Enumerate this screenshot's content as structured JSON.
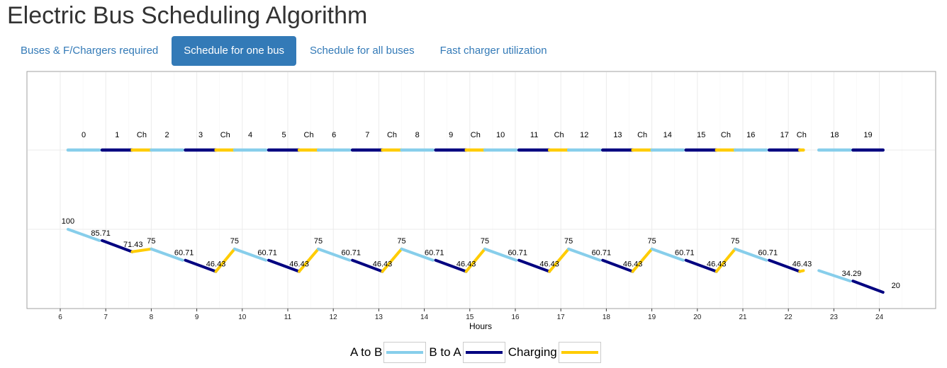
{
  "title": "Electric Bus Scheduling Algorithm",
  "tabs": [
    {
      "label": "Buses & F/Chargers required",
      "active": false
    },
    {
      "label": "Schedule for one bus",
      "active": true
    },
    {
      "label": "Schedule for all buses",
      "active": false
    },
    {
      "label": "Fast charger utilization",
      "active": false
    }
  ],
  "colors": {
    "a_to_b": "#87ceeb",
    "b_to_a": "#000080",
    "charging": "#ffcc00",
    "accent": "#337ab7"
  },
  "legend": [
    {
      "label": "A to B",
      "color_key": "a_to_b"
    },
    {
      "label": "B to A",
      "color_key": "b_to_a"
    },
    {
      "label": "Charging",
      "color_key": "charging"
    }
  ],
  "chart_data": {
    "type": "line",
    "xlabel": "Hours",
    "ylabel": "",
    "xlim": [
      5.6,
      25.5
    ],
    "x_ticks": [
      6,
      7,
      8,
      9,
      10,
      11,
      12,
      13,
      14,
      15,
      16,
      17,
      18,
      19,
      20,
      21,
      22,
      23,
      24
    ],
    "grid": true,
    "legend_position": "bottom",
    "schedule": [
      {
        "label": "0",
        "type": "a_to_b",
        "start": 6.17,
        "end": 6.86
      },
      {
        "label": "1",
        "type": "b_to_a",
        "start": 6.92,
        "end": 7.58
      },
      {
        "label": "Ch",
        "type": "charging",
        "start": 7.58,
        "end": 8.0
      },
      {
        "label": "2",
        "type": "a_to_b",
        "start": 8.0,
        "end": 8.69
      },
      {
        "label": "3",
        "type": "b_to_a",
        "start": 8.75,
        "end": 9.42
      },
      {
        "label": "Ch",
        "type": "charging",
        "start": 9.42,
        "end": 9.83
      },
      {
        "label": "4",
        "type": "a_to_b",
        "start": 9.83,
        "end": 10.52
      },
      {
        "label": "5",
        "type": "b_to_a",
        "start": 10.58,
        "end": 11.25
      },
      {
        "label": "Ch",
        "type": "charging",
        "start": 11.25,
        "end": 11.67
      },
      {
        "label": "6",
        "type": "a_to_b",
        "start": 11.67,
        "end": 12.36
      },
      {
        "label": "7",
        "type": "b_to_a",
        "start": 12.42,
        "end": 13.08
      },
      {
        "label": "Ch",
        "type": "charging",
        "start": 13.08,
        "end": 13.5
      },
      {
        "label": "8",
        "type": "a_to_b",
        "start": 13.5,
        "end": 14.19
      },
      {
        "label": "9",
        "type": "b_to_a",
        "start": 14.25,
        "end": 14.92
      },
      {
        "label": "Ch",
        "type": "charging",
        "start": 14.92,
        "end": 15.33
      },
      {
        "label": "10",
        "type": "a_to_b",
        "start": 15.33,
        "end": 16.02
      },
      {
        "label": "11",
        "type": "b_to_a",
        "start": 16.08,
        "end": 16.75
      },
      {
        "label": "Ch",
        "type": "charging",
        "start": 16.75,
        "end": 17.17
      },
      {
        "label": "12",
        "type": "a_to_b",
        "start": 17.17,
        "end": 17.86
      },
      {
        "label": "13",
        "type": "b_to_a",
        "start": 17.92,
        "end": 18.58
      },
      {
        "label": "Ch",
        "type": "charging",
        "start": 18.58,
        "end": 19.0
      },
      {
        "label": "14",
        "type": "a_to_b",
        "start": 19.0,
        "end": 19.69
      },
      {
        "label": "15",
        "type": "b_to_a",
        "start": 19.75,
        "end": 20.42
      },
      {
        "label": "Ch",
        "type": "charging",
        "start": 20.42,
        "end": 20.83
      },
      {
        "label": "16",
        "type": "a_to_b",
        "start": 20.83,
        "end": 21.52
      },
      {
        "label": "17",
        "type": "b_to_a",
        "start": 21.58,
        "end": 22.25
      },
      {
        "label": "Ch",
        "type": "charging",
        "start": 22.25,
        "end": 22.33
      },
      {
        "label": "18",
        "type": "a_to_b",
        "start": 22.67,
        "end": 23.36
      },
      {
        "label": "19",
        "type": "b_to_a",
        "start": 23.42,
        "end": 24.08
      }
    ],
    "soc": [
      {
        "type": "a_to_b",
        "x": [
          6.17,
          6.86
        ],
        "y": [
          100,
          85.71
        ]
      },
      {
        "type": "b_to_a",
        "x": [
          6.92,
          7.58
        ],
        "y": [
          85.71,
          71.43
        ]
      },
      {
        "type": "charging",
        "x": [
          7.58,
          8.0
        ],
        "y": [
          71.43,
          75
        ]
      },
      {
        "type": "a_to_b",
        "x": [
          8.0,
          8.69
        ],
        "y": [
          75,
          60.71
        ]
      },
      {
        "type": "b_to_a",
        "x": [
          8.75,
          9.42
        ],
        "y": [
          60.71,
          46.43
        ]
      },
      {
        "type": "charging",
        "x": [
          9.42,
          9.83
        ],
        "y": [
          46.43,
          75
        ]
      },
      {
        "type": "a_to_b",
        "x": [
          9.83,
          10.52
        ],
        "y": [
          75,
          60.71
        ]
      },
      {
        "type": "b_to_a",
        "x": [
          10.58,
          11.25
        ],
        "y": [
          60.71,
          46.43
        ]
      },
      {
        "type": "charging",
        "x": [
          11.25,
          11.67
        ],
        "y": [
          46.43,
          75
        ]
      },
      {
        "type": "a_to_b",
        "x": [
          11.67,
          12.36
        ],
        "y": [
          75,
          60.71
        ]
      },
      {
        "type": "b_to_a",
        "x": [
          12.42,
          13.08
        ],
        "y": [
          60.71,
          46.43
        ]
      },
      {
        "type": "charging",
        "x": [
          13.08,
          13.5
        ],
        "y": [
          46.43,
          75
        ]
      },
      {
        "type": "a_to_b",
        "x": [
          13.5,
          14.19
        ],
        "y": [
          75,
          60.71
        ]
      },
      {
        "type": "b_to_a",
        "x": [
          14.25,
          14.92
        ],
        "y": [
          60.71,
          46.43
        ]
      },
      {
        "type": "charging",
        "x": [
          14.92,
          15.33
        ],
        "y": [
          46.43,
          75
        ]
      },
      {
        "type": "a_to_b",
        "x": [
          15.33,
          16.02
        ],
        "y": [
          75,
          60.71
        ]
      },
      {
        "type": "b_to_a",
        "x": [
          16.08,
          16.75
        ],
        "y": [
          60.71,
          46.43
        ]
      },
      {
        "type": "charging",
        "x": [
          16.75,
          17.17
        ],
        "y": [
          46.43,
          75
        ]
      },
      {
        "type": "a_to_b",
        "x": [
          17.17,
          17.86
        ],
        "y": [
          75,
          60.71
        ]
      },
      {
        "type": "b_to_a",
        "x": [
          17.92,
          18.58
        ],
        "y": [
          60.71,
          46.43
        ]
      },
      {
        "type": "charging",
        "x": [
          18.58,
          19.0
        ],
        "y": [
          46.43,
          75
        ]
      },
      {
        "type": "a_to_b",
        "x": [
          19.0,
          19.69
        ],
        "y": [
          75,
          60.71
        ]
      },
      {
        "type": "b_to_a",
        "x": [
          19.75,
          20.42
        ],
        "y": [
          60.71,
          46.43
        ]
      },
      {
        "type": "charging",
        "x": [
          20.42,
          20.83
        ],
        "y": [
          46.43,
          75
        ]
      },
      {
        "type": "a_to_b",
        "x": [
          20.83,
          21.52
        ],
        "y": [
          75,
          60.71
        ]
      },
      {
        "type": "b_to_a",
        "x": [
          21.58,
          22.25
        ],
        "y": [
          60.71,
          46.43
        ]
      },
      {
        "type": "charging",
        "x": [
          22.25,
          22.33
        ],
        "y": [
          46.43,
          47.5
        ]
      },
      {
        "type": "a_to_b",
        "x": [
          22.67,
          23.36
        ],
        "y": [
          47.5,
          34.29
        ]
      },
      {
        "type": "b_to_a",
        "x": [
          23.42,
          24.08
        ],
        "y": [
          34.29,
          20
        ]
      }
    ],
    "soc_labels": [
      {
        "text": "100",
        "x": 6.17,
        "y": 100
      },
      {
        "text": "85.71",
        "x": 6.89,
        "y": 85.71
      },
      {
        "text": "71.43",
        "x": 7.6,
        "y": 71.43
      },
      {
        "text": "75",
        "x": 8.0,
        "y": 75
      },
      {
        "text": "60.71",
        "x": 8.72,
        "y": 60.71
      },
      {
        "text": "46.43",
        "x": 9.42,
        "y": 46.43
      },
      {
        "text": "75",
        "x": 9.83,
        "y": 75
      },
      {
        "text": "60.71",
        "x": 10.55,
        "y": 60.71
      },
      {
        "text": "46.43",
        "x": 11.25,
        "y": 46.43
      },
      {
        "text": "75",
        "x": 11.67,
        "y": 75
      },
      {
        "text": "60.71",
        "x": 12.39,
        "y": 60.71
      },
      {
        "text": "46.43",
        "x": 13.08,
        "y": 46.43
      },
      {
        "text": "75",
        "x": 13.5,
        "y": 75
      },
      {
        "text": "60.71",
        "x": 14.22,
        "y": 60.71
      },
      {
        "text": "46.43",
        "x": 14.92,
        "y": 46.43
      },
      {
        "text": "75",
        "x": 15.33,
        "y": 75
      },
      {
        "text": "60.71",
        "x": 16.05,
        "y": 60.71
      },
      {
        "text": "46.43",
        "x": 16.75,
        "y": 46.43
      },
      {
        "text": "75",
        "x": 17.17,
        "y": 75
      },
      {
        "text": "60.71",
        "x": 17.89,
        "y": 60.71
      },
      {
        "text": "46.43",
        "x": 18.58,
        "y": 46.43
      },
      {
        "text": "75",
        "x": 19.0,
        "y": 75
      },
      {
        "text": "60.71",
        "x": 19.72,
        "y": 60.71
      },
      {
        "text": "46.43",
        "x": 20.42,
        "y": 46.43
      },
      {
        "text": "75",
        "x": 20.83,
        "y": 75
      },
      {
        "text": "60.71",
        "x": 21.55,
        "y": 60.71
      },
      {
        "text": "46.43",
        "x": 22.3,
        "y": 46.43
      },
      {
        "text": "34.29",
        "x": 23.39,
        "y": 34.29
      },
      {
        "text": "20",
        "x": 24.08,
        "y": 20
      }
    ]
  }
}
